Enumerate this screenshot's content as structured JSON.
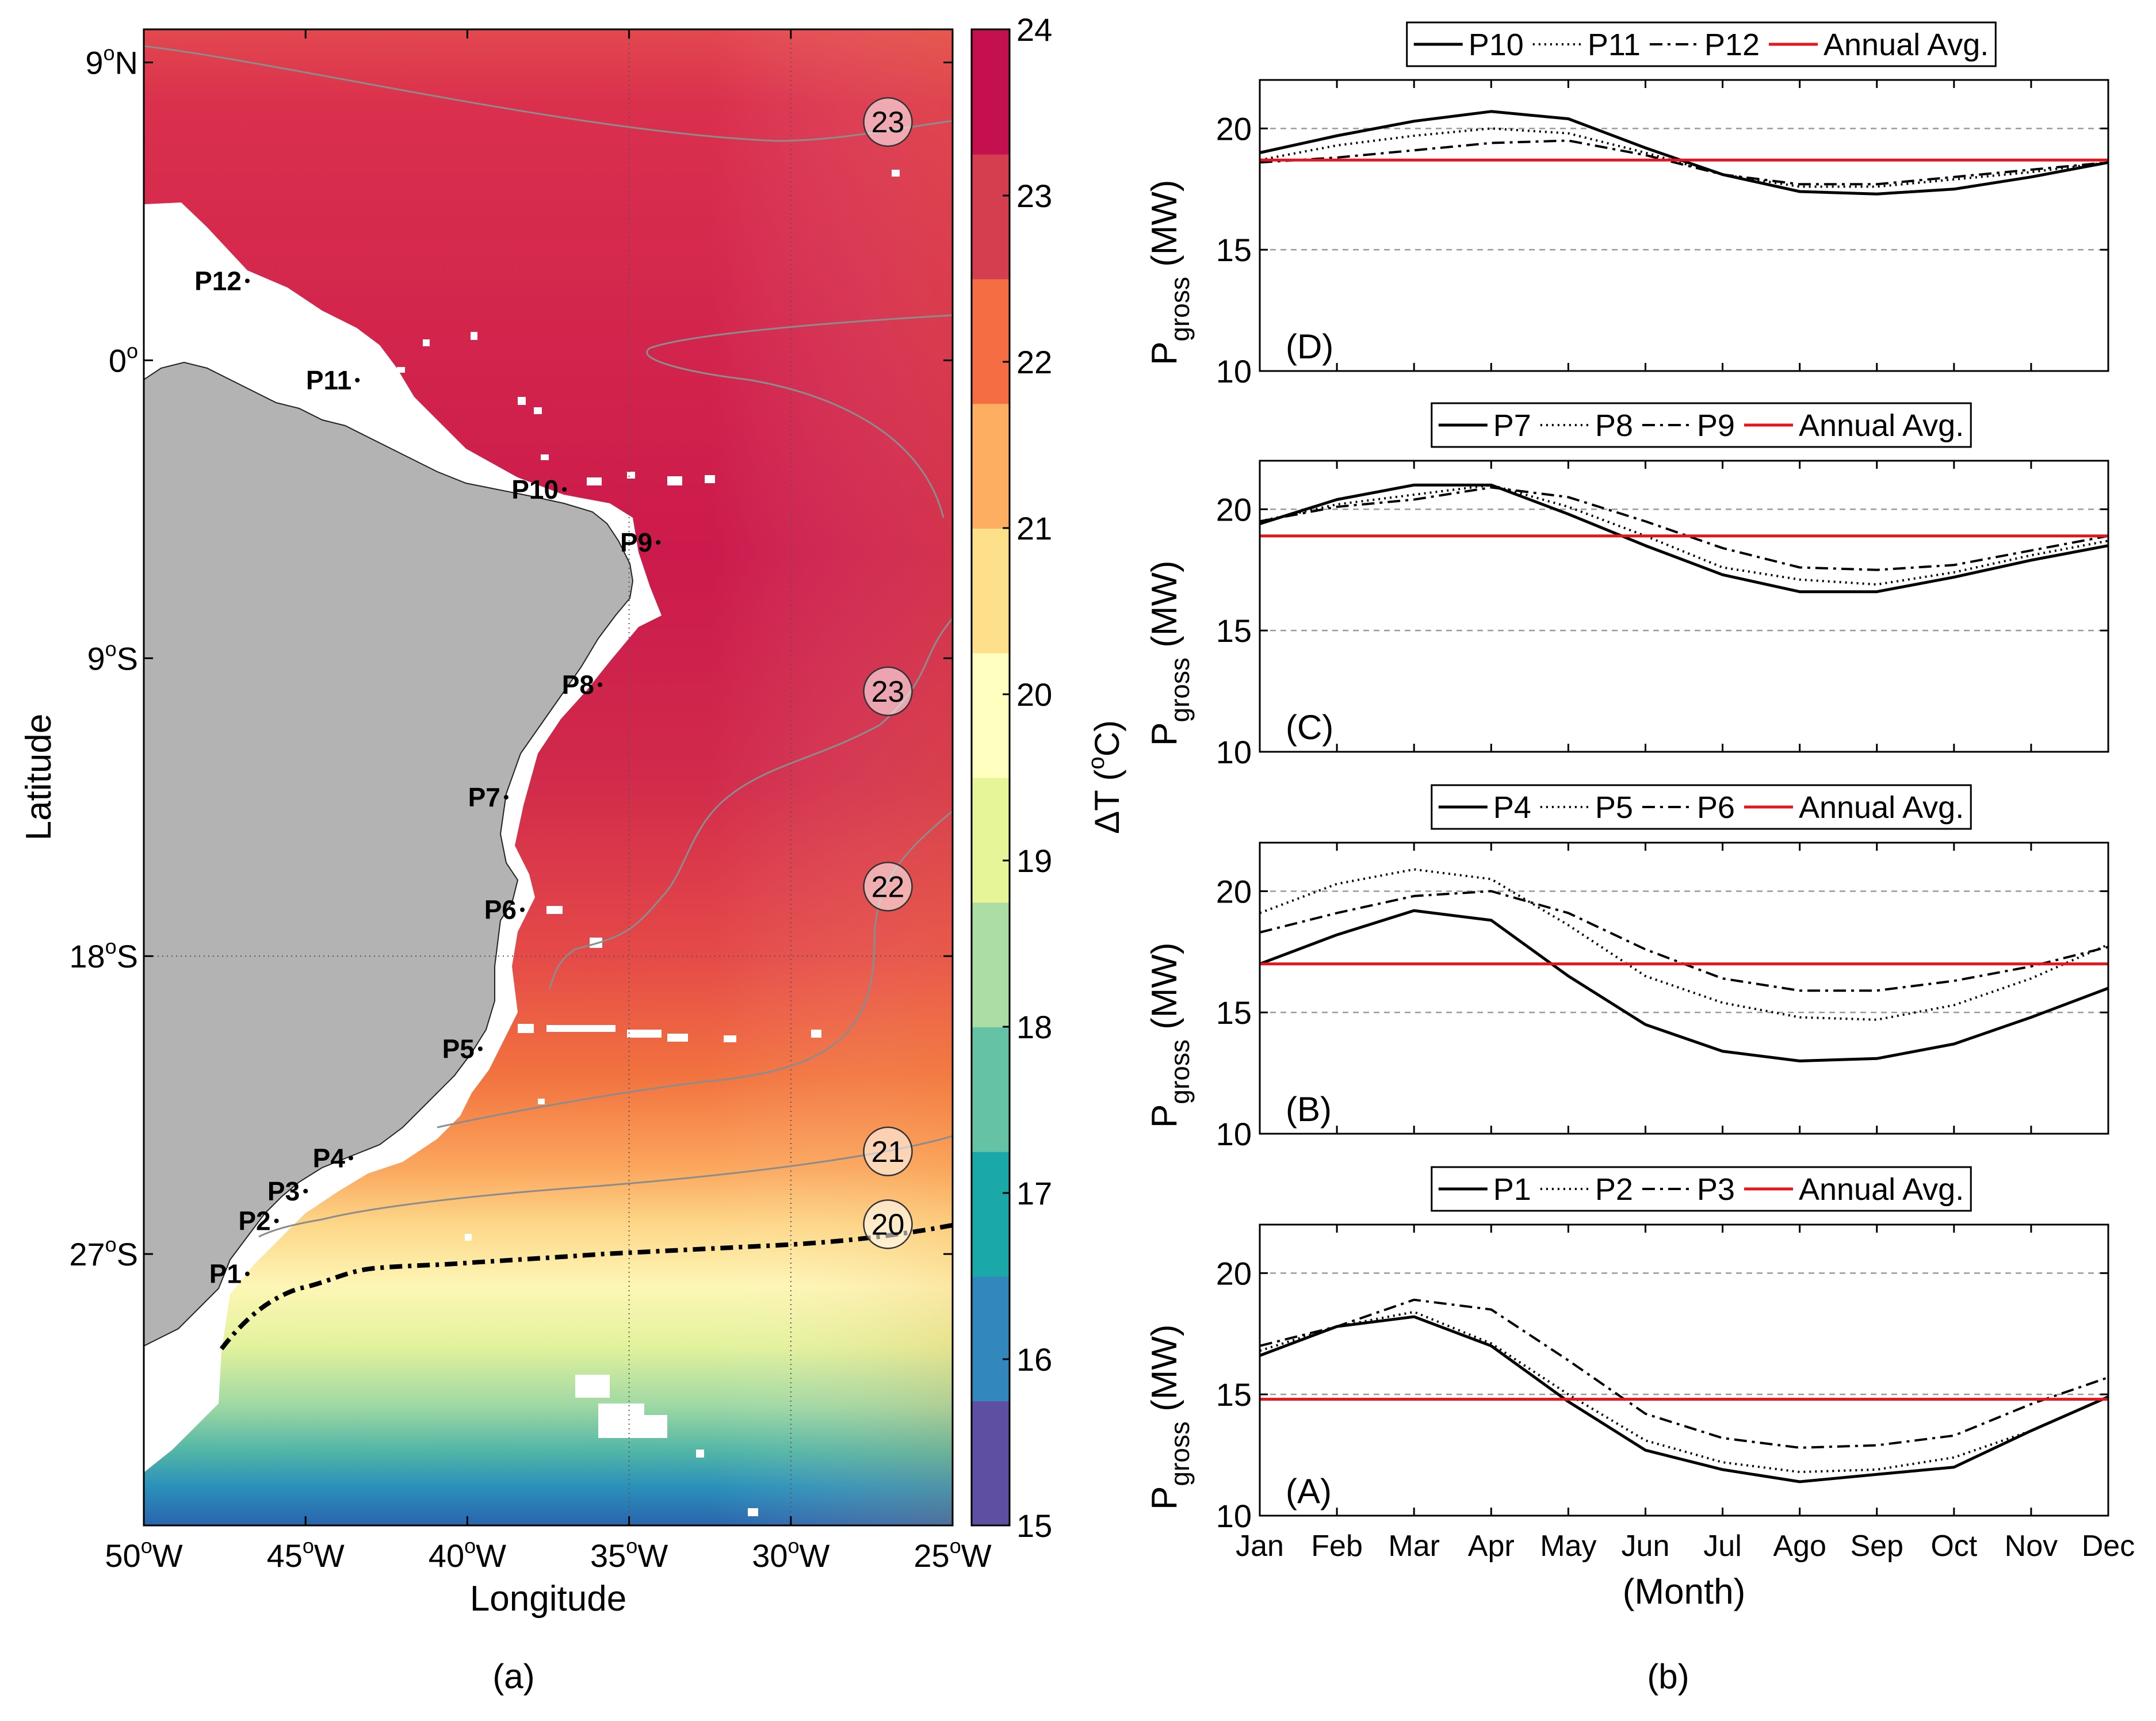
{
  "figure": {
    "label_a": "(a)",
    "label_b": "(b)"
  },
  "map": {
    "xlabel": "Longitude",
    "ylabel": "Latitude",
    "x_ticks": [
      {
        "lon": -50,
        "label": "50",
        "deg": "o",
        "hemi": "W"
      },
      {
        "lon": -45,
        "label": "45",
        "deg": "o",
        "hemi": "W"
      },
      {
        "lon": -40,
        "label": "40",
        "deg": "o",
        "hemi": "W"
      },
      {
        "lon": -35,
        "label": "35",
        "deg": "o",
        "hemi": "W"
      },
      {
        "lon": -30,
        "label": "30",
        "deg": "o",
        "hemi": "W"
      },
      {
        "lon": -25,
        "label": "25",
        "deg": "o",
        "hemi": "W"
      }
    ],
    "y_ticks": [
      {
        "lat": 9,
        "label": "9",
        "deg": "o",
        "hemi": "N"
      },
      {
        "lat": 0,
        "label": "0",
        "deg": "o",
        "hemi": ""
      },
      {
        "lat": -9,
        "label": "9",
        "deg": "o",
        "hemi": "S"
      },
      {
        "lat": -18,
        "label": "18",
        "deg": "o",
        "hemi": "S"
      },
      {
        "lat": -27,
        "label": "27",
        "deg": "o",
        "hemi": "S"
      }
    ],
    "lon_range": [
      -50,
      -25
    ],
    "lat_range": [
      -35.2,
      10.0
    ],
    "points": [
      {
        "name": "P1",
        "lon": -46.8,
        "lat": -27.6
      },
      {
        "name": "P2",
        "lon": -45.9,
        "lat": -26.0
      },
      {
        "name": "P3",
        "lon": -45.0,
        "lat": -25.1
      },
      {
        "name": "P4",
        "lon": -43.6,
        "lat": -24.1
      },
      {
        "name": "P5",
        "lon": -39.6,
        "lat": -20.8
      },
      {
        "name": "P6",
        "lon": -38.3,
        "lat": -16.6
      },
      {
        "name": "P7",
        "lon": -38.8,
        "lat": -13.2
      },
      {
        "name": "P8",
        "lon": -35.9,
        "lat": -9.8
      },
      {
        "name": "P9",
        "lon": -34.1,
        "lat": -5.5
      },
      {
        "name": "P10",
        "lon": -37.0,
        "lat": -3.9
      },
      {
        "name": "P11",
        "lon": -43.4,
        "lat": -0.6
      },
      {
        "name": "P12",
        "lon": -46.8,
        "lat": 2.4
      }
    ],
    "isotherm_labels": [
      {
        "value": "23",
        "lon": -27.0,
        "lat": 7.2
      },
      {
        "value": "23",
        "lon": -27.0,
        "lat": -10.0
      },
      {
        "value": "22",
        "lon": -27.0,
        "lat": -15.9
      },
      {
        "value": "21",
        "lon": -27.0,
        "lat": -23.9
      },
      {
        "value": "20",
        "lon": -27.0,
        "lat": -26.1
      }
    ]
  },
  "colorbar": {
    "label": "ΔT (",
    "label_deg": "o",
    "label_unit": "C)",
    "min": 15,
    "max": 24,
    "ticks": [
      "15",
      "16",
      "17",
      "18",
      "19",
      "20",
      "21",
      "22",
      "23",
      "24"
    ],
    "colors": [
      "#5e4fa2",
      "#3288bd",
      "#1aa8a8",
      "#66c2a5",
      "#abdda4",
      "#e6f598",
      "#ffffbf",
      "#fee08b",
      "#fdae61",
      "#f46d43",
      "#d53e4f",
      "#c4104f"
    ]
  },
  "chart_data": [
    {
      "type": "line",
      "panel": "(D)",
      "xlabel": "",
      "ylabel_main": "P",
      "ylabel_sub": "gross",
      "ylabel_unit": " (MW)",
      "ylim": [
        10,
        22
      ],
      "yticks": [
        "10",
        "15",
        "20"
      ],
      "categories": [
        "Jan",
        "Feb",
        "Mar",
        "Apr",
        "May",
        "Jun",
        "Jul",
        "Ago",
        "Sep",
        "Oct",
        "Nov",
        "Dec"
      ],
      "series": [
        {
          "name": "P10",
          "style": "solid",
          "values": [
            19.0,
            19.7,
            20.3,
            20.7,
            20.4,
            19.2,
            18.1,
            17.4,
            17.3,
            17.5,
            18.0,
            18.6
          ]
        },
        {
          "name": "P11",
          "style": "dotted",
          "values": [
            18.7,
            19.3,
            19.7,
            20.0,
            19.8,
            19.0,
            18.1,
            17.6,
            17.6,
            17.9,
            18.2,
            18.6
          ]
        },
        {
          "name": "P12",
          "style": "dashdot",
          "values": [
            18.6,
            18.8,
            19.1,
            19.4,
            19.5,
            18.9,
            18.1,
            17.7,
            17.7,
            18.0,
            18.3,
            18.6
          ]
        },
        {
          "name": "Annual Avg.",
          "style": "red",
          "values": [
            18.7,
            18.7,
            18.7,
            18.7,
            18.7,
            18.7,
            18.7,
            18.7,
            18.7,
            18.7,
            18.7,
            18.7
          ]
        }
      ]
    },
    {
      "type": "line",
      "panel": "(C)",
      "xlabel": "",
      "ylabel_main": "P",
      "ylabel_sub": "gross",
      "ylabel_unit": " (MW)",
      "ylim": [
        10,
        22
      ],
      "yticks": [
        "10",
        "15",
        "20"
      ],
      "categories": [
        "Jan",
        "Feb",
        "Mar",
        "Apr",
        "May",
        "Jun",
        "Jul",
        "Ago",
        "Sep",
        "Oct",
        "Nov",
        "Dec"
      ],
      "series": [
        {
          "name": "P7",
          "style": "solid",
          "values": [
            19.4,
            20.4,
            21.0,
            21.0,
            19.8,
            18.5,
            17.3,
            16.6,
            16.6,
            17.2,
            17.9,
            18.5
          ]
        },
        {
          "name": "P8",
          "style": "dotted",
          "values": [
            19.5,
            20.2,
            20.6,
            21.0,
            20.1,
            18.9,
            17.6,
            17.1,
            16.9,
            17.4,
            18.1,
            18.7
          ]
        },
        {
          "name": "P9",
          "style": "dashdot",
          "values": [
            19.5,
            20.1,
            20.4,
            20.9,
            20.5,
            19.5,
            18.4,
            17.6,
            17.5,
            17.7,
            18.3,
            18.9
          ]
        },
        {
          "name": "Annual Avg.",
          "style": "red",
          "values": [
            18.9,
            18.9,
            18.9,
            18.9,
            18.9,
            18.9,
            18.9,
            18.9,
            18.9,
            18.9,
            18.9,
            18.9
          ]
        }
      ]
    },
    {
      "type": "line",
      "panel": "(B)",
      "xlabel": "",
      "ylabel_main": "P",
      "ylabel_sub": "gross",
      "ylabel_unit": " (MW)",
      "ylim": [
        10,
        22
      ],
      "yticks": [
        "10",
        "15",
        "20"
      ],
      "categories": [
        "Jan",
        "Feb",
        "Mar",
        "Apr",
        "May",
        "Jun",
        "Jul",
        "Ago",
        "Sep",
        "Oct",
        "Nov",
        "Dec"
      ],
      "series": [
        {
          "name": "P4",
          "style": "solid",
          "values": [
            17.0,
            18.2,
            19.2,
            18.8,
            16.5,
            14.5,
            13.4,
            13.0,
            13.1,
            13.7,
            14.8,
            16.0
          ]
        },
        {
          "name": "P5",
          "style": "dotted",
          "values": [
            19.1,
            20.3,
            20.9,
            20.5,
            18.6,
            16.5,
            15.4,
            14.8,
            14.7,
            15.3,
            16.4,
            17.8
          ]
        },
        {
          "name": "P6",
          "style": "dashdot",
          "values": [
            18.3,
            19.1,
            19.8,
            20.0,
            19.1,
            17.6,
            16.4,
            15.9,
            15.9,
            16.3,
            16.9,
            17.7
          ]
        },
        {
          "name": "Annual Avg.",
          "style": "red",
          "values": [
            17.0,
            17.0,
            17.0,
            17.0,
            17.0,
            17.0,
            17.0,
            17.0,
            17.0,
            17.0,
            17.0,
            17.0
          ]
        }
      ]
    },
    {
      "type": "line",
      "panel": "(A)",
      "xlabel": "(Month)",
      "ylabel_main": "P",
      "ylabel_sub": "gross",
      "ylabel_unit": " (MW)",
      "ylim": [
        10,
        22
      ],
      "yticks": [
        "10",
        "15",
        "20"
      ],
      "categories": [
        "Jan",
        "Feb",
        "Mar",
        "Apr",
        "May",
        "Jun",
        "Jul",
        "Ago",
        "Sep",
        "Oct",
        "Nov",
        "Dec"
      ],
      "series": [
        {
          "name": "P1",
          "style": "solid",
          "values": [
            16.6,
            17.8,
            18.2,
            17.0,
            14.7,
            12.7,
            11.9,
            11.4,
            11.7,
            12.0,
            13.5,
            14.9
          ]
        },
        {
          "name": "P2",
          "style": "dotted",
          "values": [
            16.8,
            17.8,
            18.4,
            17.1,
            15.0,
            13.1,
            12.2,
            11.8,
            11.9,
            12.4,
            13.5,
            14.9
          ]
        },
        {
          "name": "P3",
          "style": "dashdot",
          "values": [
            17.0,
            17.8,
            18.9,
            18.5,
            16.4,
            14.2,
            13.2,
            12.8,
            12.9,
            13.3,
            14.6,
            15.7
          ]
        },
        {
          "name": "Annual Avg.",
          "style": "red",
          "values": [
            14.8,
            14.8,
            14.8,
            14.8,
            14.8,
            14.8,
            14.8,
            14.8,
            14.8,
            14.8,
            14.8,
            14.8
          ]
        }
      ]
    }
  ]
}
